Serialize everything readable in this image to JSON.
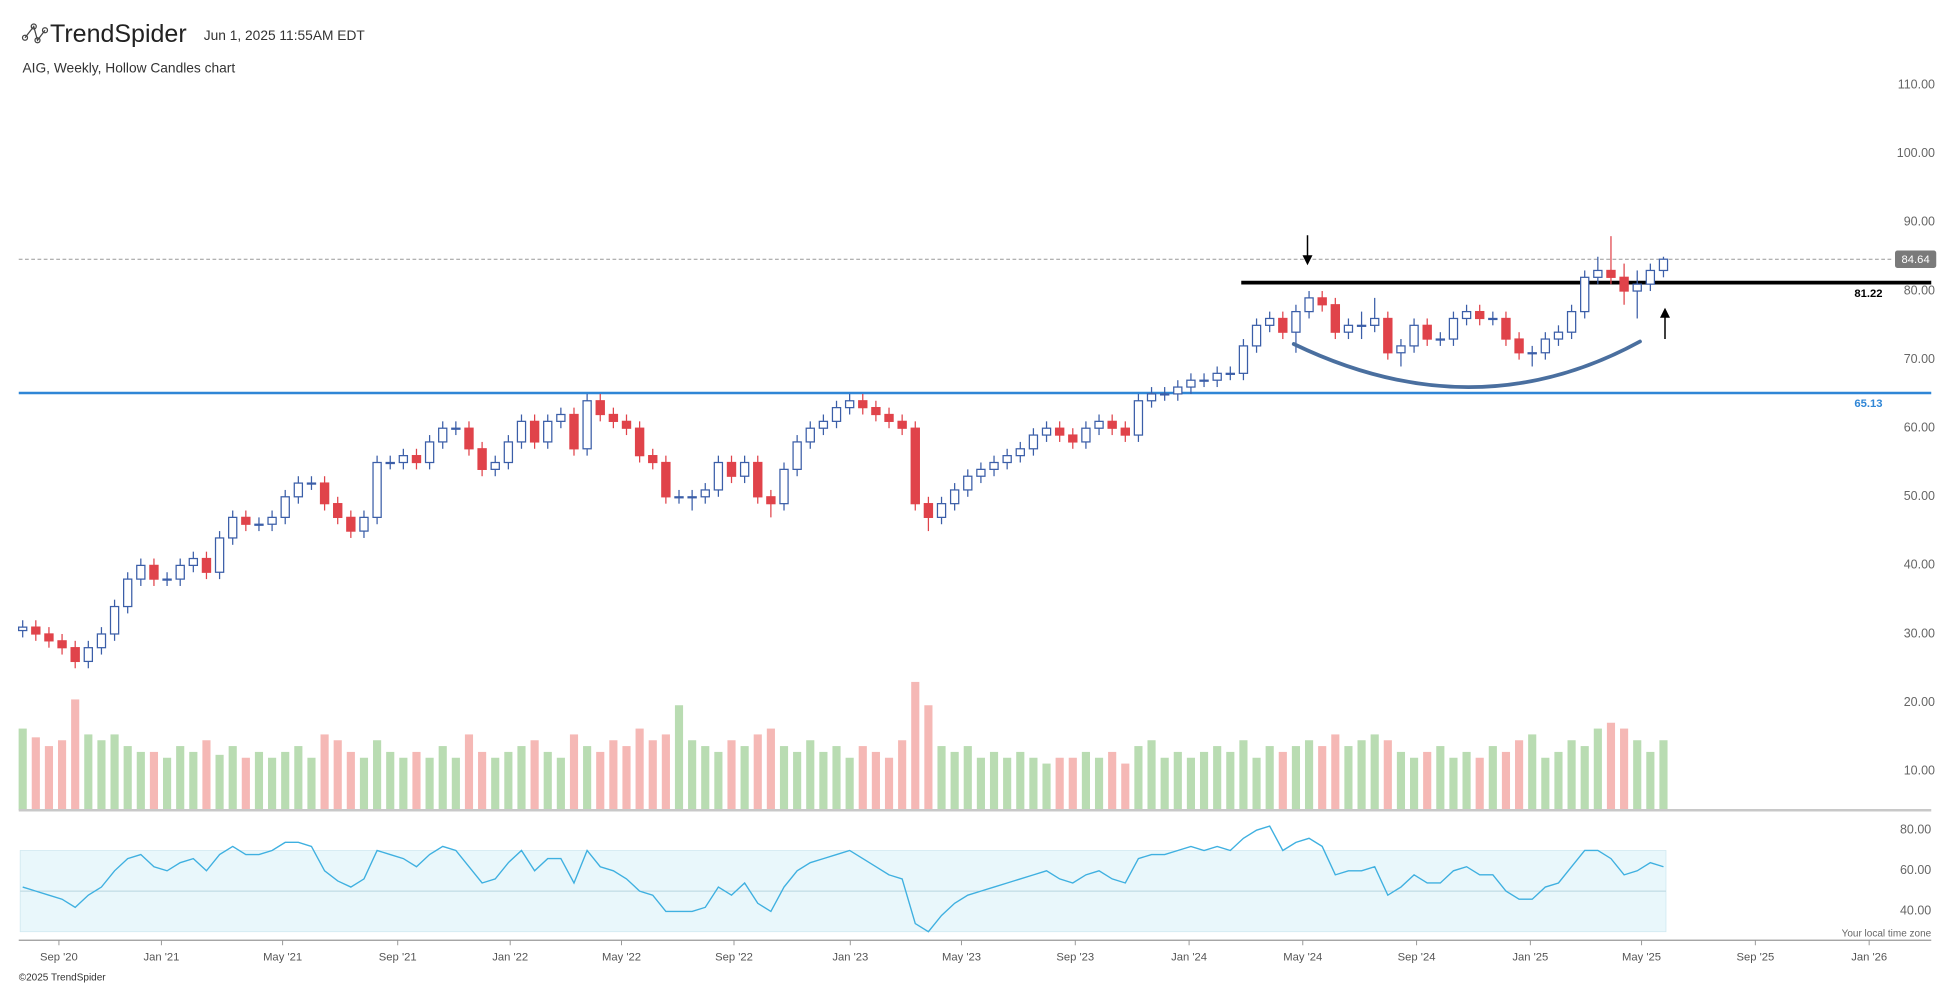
{
  "header": {
    "brand": "TrendSpider",
    "timestamp": "Jun 1, 2025 11:55AM EDT"
  },
  "footer": {
    "copyright": "©2025 TrendSpider",
    "timezone_note": "Your local time zone"
  },
  "chart_data": {
    "type": "candlestick",
    "title": "AIG, Weekly, Hollow Candles chart",
    "x": [
      0,
      1,
      2,
      3,
      4,
      5,
      6,
      7,
      8,
      9,
      10,
      11,
      12,
      13,
      14,
      15,
      16,
      17,
      18,
      19,
      20,
      21,
      22,
      23,
      24,
      25,
      26,
      27,
      28,
      29,
      30,
      31,
      32,
      33,
      34,
      35,
      36,
      37,
      38,
      39,
      40,
      41,
      42,
      43,
      44,
      45,
      46,
      47,
      48,
      49,
      50,
      51,
      52,
      53,
      54,
      55,
      56,
      57,
      58,
      59,
      60,
      61,
      62,
      63,
      64,
      65,
      66,
      67,
      68,
      69,
      70,
      71,
      72,
      73,
      74,
      75,
      76,
      77,
      78,
      79,
      80,
      81,
      82,
      83,
      84,
      85,
      86,
      87,
      88,
      89,
      90,
      91,
      92,
      93,
      94,
      95,
      96,
      97,
      98,
      99,
      100,
      101,
      102,
      103,
      104,
      105,
      106,
      107,
      108,
      109,
      110,
      111,
      112,
      113,
      114,
      115,
      116,
      117,
      118,
      119,
      120,
      121,
      122,
      123,
      124,
      125
    ],
    "open": [
      30.5,
      31,
      30,
      29,
      28,
      26,
      28,
      30,
      34,
      38,
      40,
      38,
      38,
      40,
      41,
      39,
      44,
      47,
      46,
      46,
      47,
      50,
      52,
      52,
      49,
      47,
      45,
      47,
      55,
      55,
      56,
      55,
      58,
      60,
      60,
      57,
      54,
      55,
      58,
      61,
      58,
      61,
      62,
      57,
      64,
      62,
      61,
      60,
      56,
      55,
      50,
      50,
      50,
      51,
      55,
      53,
      55,
      50,
      49,
      54,
      58,
      60,
      61,
      63,
      64,
      63,
      62,
      61,
      60,
      49,
      47,
      49,
      51,
      53,
      54,
      55,
      56,
      57,
      59,
      60,
      59,
      58,
      60,
      61,
      60,
      59,
      64,
      65,
      65,
      66,
      67,
      67,
      68,
      68,
      72,
      75,
      76,
      74,
      77,
      79,
      78,
      74,
      75,
      75,
      76,
      71,
      72,
      75,
      73,
      73,
      76,
      77,
      76,
      76,
      73,
      71,
      71,
      73,
      74,
      77,
      82,
      83,
      82,
      80,
      81,
      83
    ],
    "high": [
      32,
      32,
      31,
      30,
      29,
      29,
      31,
      35,
      39,
      41,
      41,
      39,
      41,
      42,
      42,
      45,
      48,
      48,
      47,
      48,
      51,
      53,
      53,
      53,
      50,
      48,
      48,
      56,
      56,
      57,
      57,
      59,
      61,
      61,
      61,
      58,
      56,
      59,
      62,
      62,
      62,
      63,
      63,
      65,
      65,
      63,
      62,
      61,
      57,
      56,
      51,
      51,
      52,
      56,
      56,
      56,
      56,
      51,
      55,
      59,
      61,
      62,
      64,
      65,
      65,
      64,
      63,
      62,
      61,
      50,
      50,
      52,
      54,
      55,
      56,
      57,
      58,
      60,
      61,
      61,
      60,
      61,
      62,
      62,
      61,
      65,
      66,
      66,
      67,
      68,
      68,
      69,
      69,
      73,
      76,
      77,
      77,
      78,
      80,
      80,
      79,
      76,
      77,
      79,
      77,
      73,
      76,
      76,
      74,
      77,
      78,
      78,
      77,
      77,
      74,
      72,
      74,
      75,
      78,
      83,
      85,
      88,
      84,
      83,
      84,
      85
    ],
    "low": [
      29.5,
      29,
      28,
      27,
      25,
      25,
      27,
      29,
      33,
      37,
      37,
      37,
      37,
      39,
      38,
      38,
      43,
      45,
      45,
      45,
      46,
      49,
      51,
      48,
      46,
      44,
      44,
      46,
      54,
      54,
      54,
      54,
      57,
      59,
      56,
      53,
      53,
      54,
      57,
      57,
      57,
      60,
      56,
      56,
      61,
      60,
      59,
      55,
      54,
      49,
      49,
      48,
      49,
      50,
      52,
      52,
      49,
      47,
      48,
      53,
      57,
      59,
      60,
      62,
      62,
      61,
      60,
      59,
      48,
      45,
      46,
      48,
      50,
      52,
      53,
      54,
      55,
      56,
      58,
      58,
      57,
      57,
      59,
      59,
      58,
      58,
      63,
      64,
      64,
      65,
      66,
      66,
      67,
      67,
      71,
      74,
      73,
      71,
      76,
      77,
      73,
      73,
      73,
      74,
      70,
      69,
      71,
      72,
      72,
      72,
      75,
      75,
      75,
      72,
      70,
      69,
      70,
      72,
      73,
      76,
      81,
      81,
      78,
      76,
      80,
      82
    ],
    "close": [
      31,
      30,
      29,
      28,
      26,
      28,
      30,
      34,
      38,
      40,
      38,
      38,
      40,
      41,
      39,
      44,
      47,
      46,
      46,
      47,
      50,
      52,
      52,
      49,
      47,
      45,
      47,
      55,
      55,
      56,
      55,
      58,
      60,
      60,
      57,
      54,
      55,
      58,
      61,
      58,
      61,
      62,
      57,
      64,
      62,
      61,
      60,
      56,
      55,
      50,
      50,
      50,
      51,
      55,
      53,
      55,
      50,
      49,
      54,
      58,
      60,
      61,
      63,
      64,
      63,
      62,
      61,
      60,
      49,
      47,
      49,
      51,
      53,
      54,
      55,
      56,
      57,
      59,
      60,
      59,
      58,
      60,
      61,
      60,
      59,
      64,
      65,
      65,
      66,
      67,
      67,
      68,
      68,
      72,
      75,
      76,
      74,
      77,
      79,
      78,
      74,
      75,
      75,
      76,
      71,
      72,
      75,
      73,
      73,
      76,
      77,
      76,
      76,
      73,
      71,
      71,
      73,
      74,
      77,
      82,
      83,
      82,
      80,
      81,
      83,
      84.64
    ],
    "volume": [
      28,
      25,
      22,
      24,
      38,
      26,
      24,
      26,
      22,
      20,
      20,
      18,
      22,
      20,
      24,
      19,
      22,
      18,
      20,
      18,
      20,
      22,
      18,
      26,
      24,
      20,
      18,
      24,
      20,
      18,
      20,
      18,
      22,
      18,
      26,
      20,
      18,
      20,
      22,
      24,
      20,
      18,
      26,
      22,
      20,
      24,
      22,
      28,
      24,
      26,
      36,
      24,
      22,
      20,
      24,
      22,
      26,
      28,
      22,
      20,
      24,
      20,
      22,
      18,
      22,
      20,
      18,
      24,
      44,
      36,
      22,
      20,
      22,
      18,
      20,
      18,
      20,
      18,
      16,
      18,
      18,
      20,
      18,
      20,
      16,
      22,
      24,
      18,
      20,
      18,
      20,
      22,
      20,
      24,
      18,
      22,
      20,
      22,
      24,
      22,
      26,
      22,
      24,
      26,
      24,
      20,
      18,
      20,
      22,
      18,
      20,
      18,
      22,
      20,
      24,
      26,
      18,
      20,
      24,
      22,
      28,
      30,
      28,
      24,
      20,
      24
    ],
    "rsi": [
      52,
      50,
      48,
      46,
      42,
      48,
      52,
      60,
      66,
      68,
      62,
      60,
      64,
      66,
      60,
      68,
      72,
      68,
      68,
      70,
      74,
      74,
      72,
      60,
      55,
      52,
      56,
      70,
      68,
      66,
      62,
      68,
      72,
      70,
      62,
      54,
      56,
      64,
      70,
      60,
      66,
      66,
      54,
      70,
      62,
      60,
      56,
      50,
      48,
      40,
      40,
      40,
      42,
      52,
      48,
      54,
      44,
      40,
      52,
      60,
      64,
      66,
      68,
      70,
      66,
      62,
      58,
      56,
      34,
      30,
      38,
      44,
      48,
      50,
      52,
      54,
      56,
      58,
      60,
      56,
      54,
      58,
      60,
      56,
      54,
      66,
      68,
      68,
      70,
      72,
      70,
      72,
      70,
      76,
      80,
      82,
      70,
      74,
      76,
      72,
      58,
      60,
      60,
      62,
      48,
      52,
      58,
      54,
      54,
      60,
      62,
      58,
      58,
      50,
      46,
      46,
      52,
      54,
      62,
      70,
      70,
      66,
      58,
      60,
      64,
      62
    ],
    "xlim": [
      -0.3,
      145.4
    ],
    "xticks": [
      {
        "value": 2.76,
        "label": "Sep '20"
      },
      {
        "value": 10.57,
        "label": "Jan '21"
      },
      {
        "value": 19.8,
        "label": "May '21"
      },
      {
        "value": 28.57,
        "label": "Sep '21"
      },
      {
        "value": 37.14,
        "label": "Jan '22"
      },
      {
        "value": 45.62,
        "label": "May '22"
      },
      {
        "value": 54.19,
        "label": "Sep '22"
      },
      {
        "value": 63.05,
        "label": "Jan '23"
      },
      {
        "value": 71.52,
        "label": "May '23"
      },
      {
        "value": 80.19,
        "label": "Sep '23"
      },
      {
        "value": 88.86,
        "label": "Jan '24"
      },
      {
        "value": 97.52,
        "label": "May '24"
      },
      {
        "value": 106.19,
        "label": "Sep '24"
      },
      {
        "value": 114.86,
        "label": "Jan '25"
      },
      {
        "value": 123.33,
        "label": "May '25"
      },
      {
        "value": 132,
        "label": "Sep '25"
      },
      {
        "value": 140.67,
        "label": "Jan '26"
      }
    ],
    "ylim": [
      4.3,
      111.46
    ],
    "yticks": [
      {
        "value": 10,
        "label": "10.00"
      },
      {
        "value": 20,
        "label": "20.00"
      },
      {
        "value": 30,
        "label": "30.00"
      },
      {
        "value": 40,
        "label": "40.00"
      },
      {
        "value": 50,
        "label": "50.00"
      },
      {
        "value": 60,
        "label": "60.00"
      },
      {
        "value": 70,
        "label": "70.00"
      },
      {
        "value": 80,
        "label": "80.00"
      },
      {
        "value": 90,
        "label": "90.00"
      },
      {
        "value": 100,
        "label": "100.00"
      },
      {
        "value": 110,
        "label": "110.00"
      }
    ],
    "volume_lim": [
      0,
      48
    ],
    "rsi_ylim": [
      25.8,
      85.5
    ],
    "rsi_yticks": [
      {
        "value": 40,
        "label": "40.00"
      },
      {
        "value": 60,
        "label": "60.00"
      },
      {
        "value": 80,
        "label": "80.00"
      }
    ],
    "rsi_band": [
      30,
      70
    ],
    "last_price": 84.64,
    "levels": [
      {
        "value": 81.22,
        "color": "#000000"
      },
      {
        "value": 65.13,
        "color": "#2f86d6"
      }
    ],
    "colors": {
      "up": "#3b5ea8",
      "down": "#e0434a",
      "volume_up": "#b9dcb2",
      "volume_down": "#f5b8b5",
      "rsi": "#3fb0e0"
    }
  }
}
